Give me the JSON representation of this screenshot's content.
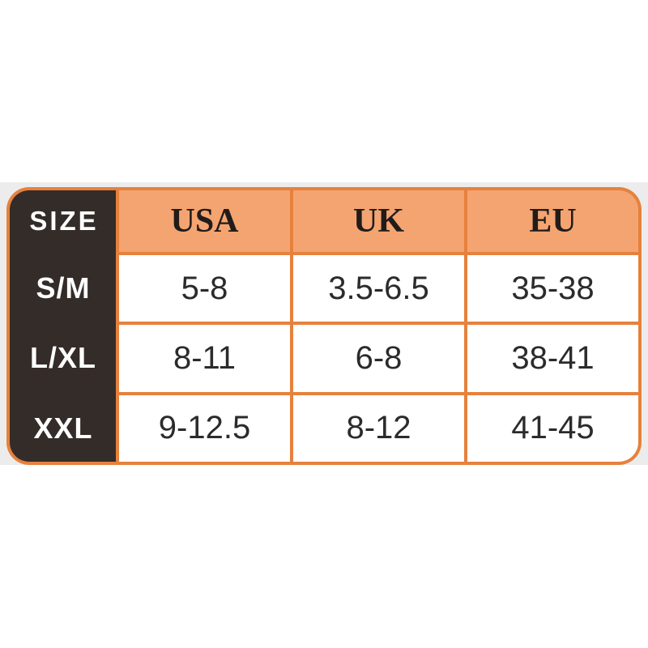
{
  "chart_data": {
    "type": "table",
    "corner_label": "SIZE",
    "columns": [
      "USA",
      "UK",
      "EU"
    ],
    "rows": [
      {
        "size": "S/M",
        "usa": "5-8",
        "uk": "3.5-6.5",
        "eu": "35-38"
      },
      {
        "size": "L/XL",
        "usa": "8-11",
        "uk": "6-8",
        "eu": "38-41"
      },
      {
        "size": "XXL",
        "usa": "9-12.5",
        "uk": "8-12",
        "eu": "41-45"
      }
    ],
    "layout_hints": {
      "header_position": "top-row",
      "size_labels_position": "left-column",
      "grid": "on"
    }
  },
  "colors": {
    "page_background": "#ffffff",
    "band_background": "#ececec",
    "grid_border_orange": "#e6813d",
    "header_fill_orange": "#f4a470",
    "size_column_dark": "#342c28",
    "header_text": "#211c1a",
    "value_text": "#2b2b2b",
    "size_label_text": "#ffffff"
  }
}
